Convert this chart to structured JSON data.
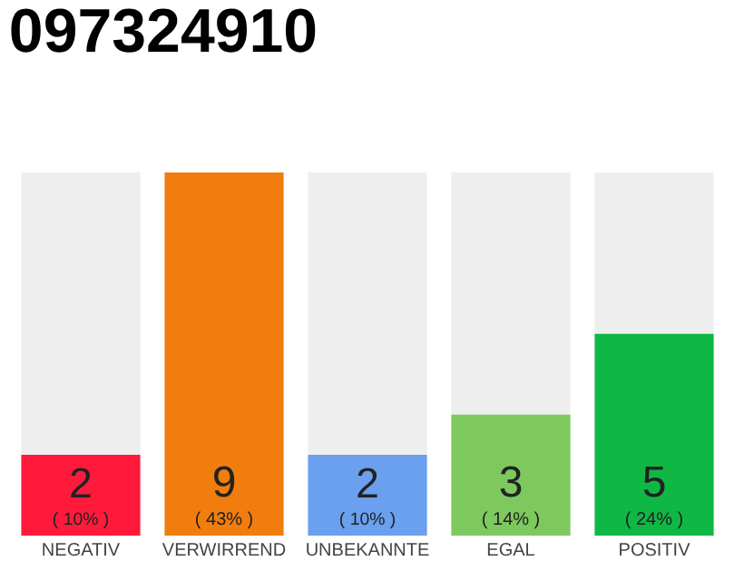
{
  "chart_data": {
    "type": "bar",
    "title": "097324910",
    "categories": [
      "NEGATIV",
      "VERWIRREND",
      "UNBEKANNTE",
      "EGAL",
      "POSITIV"
    ],
    "values": [
      2,
      9,
      2,
      3,
      5
    ],
    "colors": [
      "#ff1a3c",
      "#f07d0e",
      "#6aa0ee",
      "#7dc95e",
      "#0fb845"
    ],
    "value_labels": [
      "2\n( 10% )",
      "9\n( 43% )",
      "2\n( 10% )",
      "3\n( 14% )",
      "5\n( 24% )"
    ],
    "ylim": [
      0,
      9
    ],
    "grid": false,
    "legend": false
  }
}
